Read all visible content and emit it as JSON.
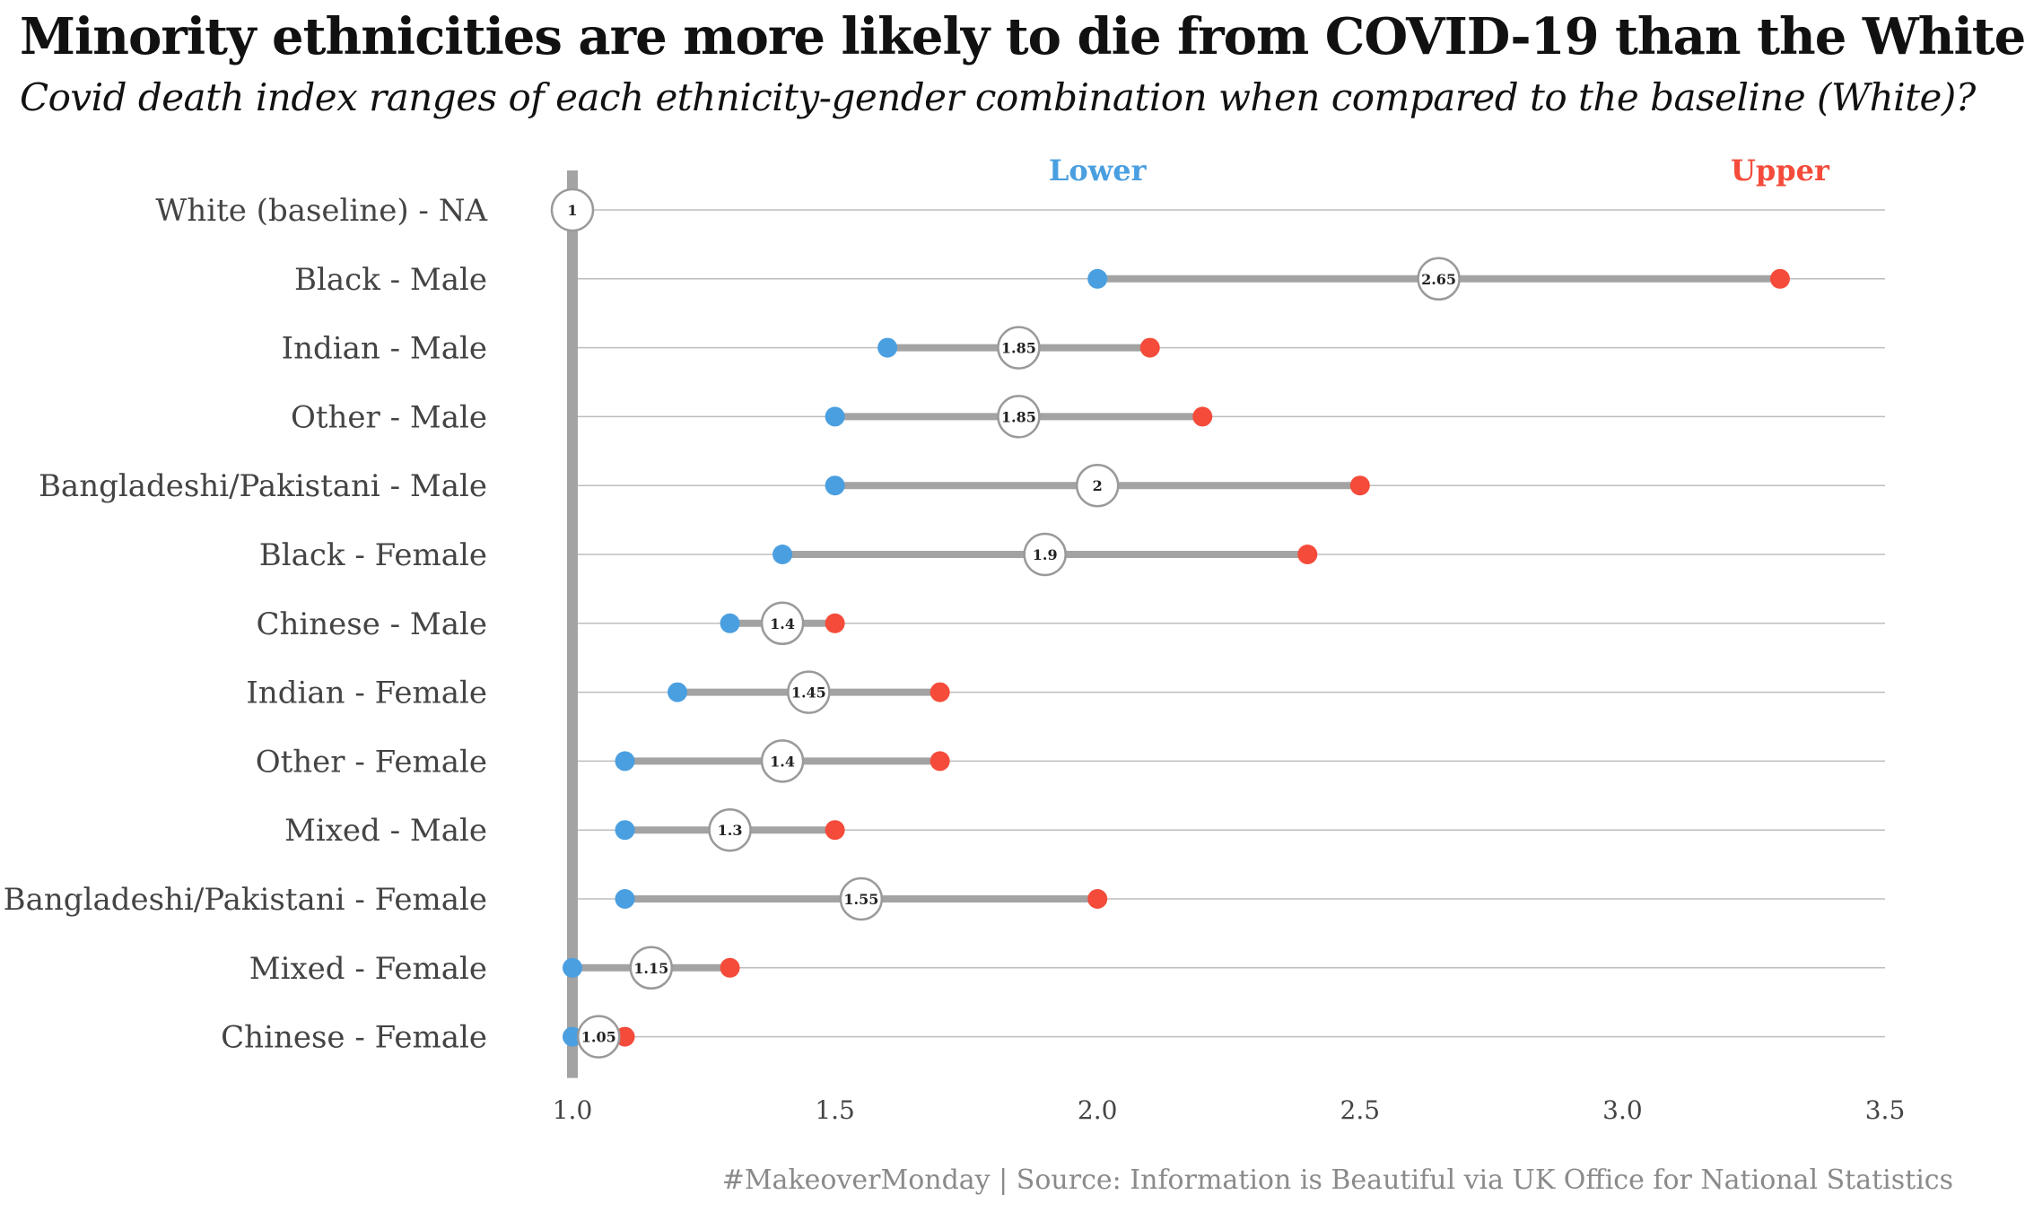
{
  "title": "Minority ethnicities are more likely to die from COVID-19 than the White",
  "subtitle": "Covid death index ranges of each ethnicity-gender combination when compared to the baseline (White)?",
  "caption": "#MakeoverMonday | Source: Information is Beautiful via UK Office for National Statistics",
  "colors": {
    "lower": "#4a9fe0",
    "upper": "#f44b3a",
    "bar": "#a3a3a3",
    "baseline": "#a3a3a3",
    "grid": "#bdbdbd"
  },
  "chart_data": {
    "type": "dumbbell",
    "title": "Minority ethnicities are more likely to die from COVID-19 than the White",
    "subtitle": "Covid death index ranges of each ethnicity-gender combination when compared to the baseline (White)?",
    "xlim": [
      1.0,
      3.5
    ],
    "xticks": [
      "1.0",
      "1.5",
      "2.0",
      "2.5",
      "3.0",
      "3.5"
    ],
    "xtick_values": [
      1.0,
      1.5,
      2.0,
      2.5,
      3.0,
      3.5
    ],
    "grid": true,
    "legend": [
      {
        "name": "Lower",
        "color": "#4a9fe0"
      },
      {
        "name": "Upper",
        "color": "#f44b3a"
      }
    ],
    "rows": [
      {
        "category": "White (baseline) - NA",
        "lower": 1.0,
        "upper": 1.0,
        "mid": 1,
        "mid_label": "1",
        "baseline": true
      },
      {
        "category": "Black - Male",
        "lower": 2.0,
        "upper": 3.3,
        "mid": 2.65,
        "mid_label": "2.65"
      },
      {
        "category": "Indian - Male",
        "lower": 1.6,
        "upper": 2.1,
        "mid": 1.85,
        "mid_label": "1.85"
      },
      {
        "category": "Other - Male",
        "lower": 1.5,
        "upper": 2.2,
        "mid": 1.85,
        "mid_label": "1.85"
      },
      {
        "category": "Bangladeshi/Pakistani - Male",
        "lower": 1.5,
        "upper": 2.5,
        "mid": 2.0,
        "mid_label": "2"
      },
      {
        "category": "Black - Female",
        "lower": 1.4,
        "upper": 2.4,
        "mid": 1.9,
        "mid_label": "1.9"
      },
      {
        "category": "Chinese - Male",
        "lower": 1.3,
        "upper": 1.5,
        "mid": 1.4,
        "mid_label": "1.4"
      },
      {
        "category": "Indian - Female",
        "lower": 1.2,
        "upper": 1.7,
        "mid": 1.45,
        "mid_label": "1.45"
      },
      {
        "category": "Other - Female",
        "lower": 1.1,
        "upper": 1.7,
        "mid": 1.4,
        "mid_label": "1.4"
      },
      {
        "category": "Mixed - Male",
        "lower": 1.1,
        "upper": 1.5,
        "mid": 1.3,
        "mid_label": "1.3"
      },
      {
        "category": "Bangladeshi/Pakistani - Female",
        "lower": 1.1,
        "upper": 2.0,
        "mid": 1.55,
        "mid_label": "1.55"
      },
      {
        "category": "Mixed - Female",
        "lower": 1.0,
        "upper": 1.3,
        "mid": 1.15,
        "mid_label": "1.15"
      },
      {
        "category": "Chinese - Female",
        "lower": 1.0,
        "upper": 1.1,
        "mid": 1.05,
        "mid_label": "1.05"
      }
    ]
  }
}
